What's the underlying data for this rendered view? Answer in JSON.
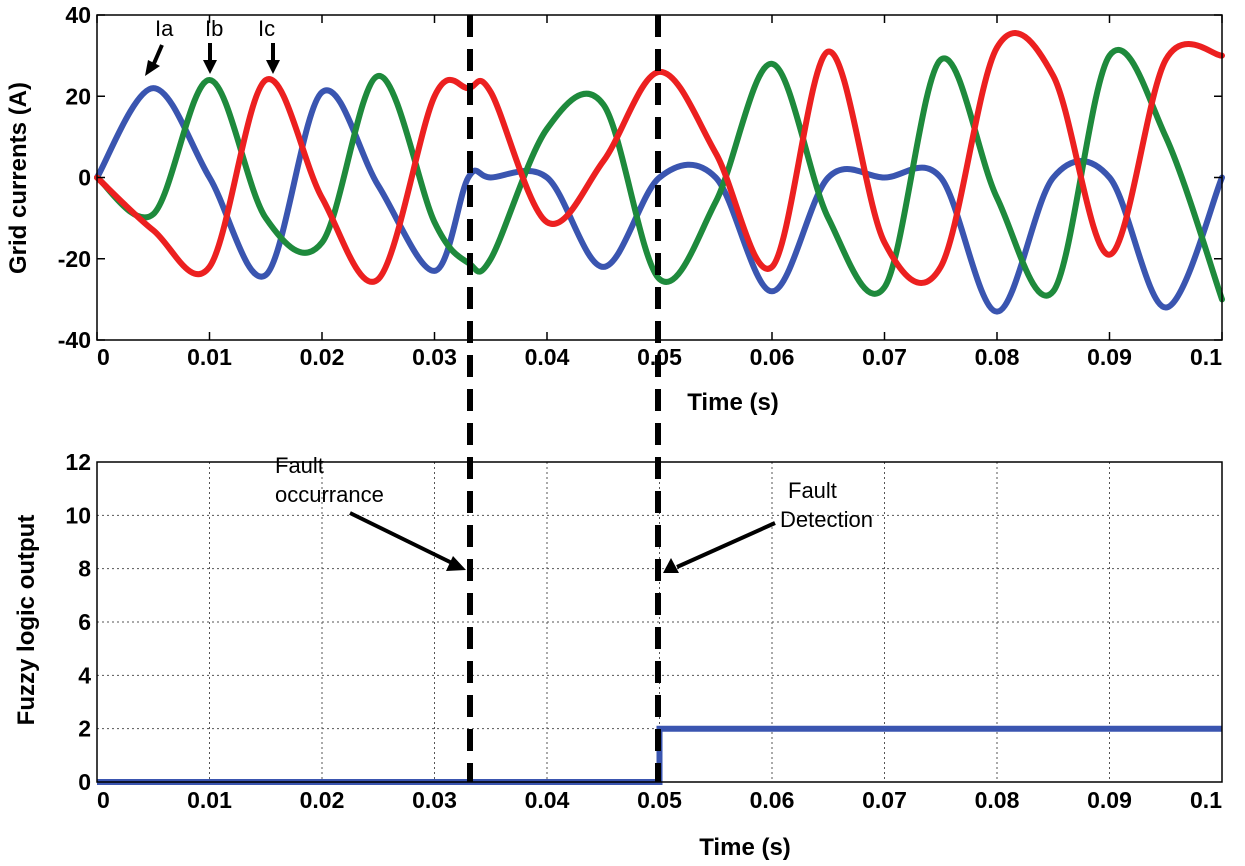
{
  "chart_data": [
    {
      "type": "line",
      "title": "",
      "xlabel": "Time (s)",
      "ylabel": "Grid currents (A)",
      "xlim": [
        0,
        0.1
      ],
      "ylim": [
        -40,
        40
      ],
      "xticks": [
        "0",
        "0.01",
        "0.02",
        "0.03",
        "0.04",
        "0.05",
        "0.06",
        "0.07",
        "0.08",
        "0.09",
        "0.1"
      ],
      "yticks": [
        "-40",
        "-20",
        "0",
        "20",
        "40"
      ],
      "grid": false,
      "x": [
        0,
        0.005,
        0.01,
        0.015,
        0.02,
        0.025,
        0.03,
        0.033,
        0.035,
        0.04,
        0.045,
        0.05,
        0.055,
        0.06,
        0.065,
        0.07,
        0.075,
        0.08,
        0.085,
        0.09,
        0.095,
        0.1
      ],
      "series": [
        {
          "name": "Ia",
          "color": "#3a55b0",
          "values": [
            0,
            22,
            0,
            -24,
            21,
            -2,
            -23,
            0,
            0,
            0,
            -22,
            0,
            0,
            -28,
            0,
            0,
            0,
            -33,
            0,
            0,
            -32,
            0
          ]
        },
        {
          "name": "Ib",
          "color": "#1e8a3c",
          "values": [
            0,
            -9,
            24,
            -10,
            -16,
            25,
            -11,
            -21,
            -20,
            12,
            18,
            -25,
            -6,
            28,
            -10,
            -27,
            29,
            -5,
            -28,
            30,
            10,
            -30
          ]
        },
        {
          "name": "Ic",
          "color": "#ec2020",
          "values": [
            0,
            -13,
            -22,
            24,
            -5,
            -25,
            20,
            22,
            21,
            -11,
            4,
            26,
            6,
            -22,
            31,
            -16,
            -22,
            32,
            25,
            -19,
            29,
            30
          ]
        }
      ],
      "labels": {
        "ia": "Ia",
        "ib": "Ib",
        "ic": "Ic"
      }
    },
    {
      "type": "line",
      "title": "",
      "xlabel": "Time (s)",
      "ylabel": "Fuzzy logic output",
      "xlim": [
        0,
        0.1
      ],
      "ylim": [
        0,
        12
      ],
      "xticks": [
        "0",
        "0.01",
        "0.02",
        "0.03",
        "0.04",
        "0.05",
        "0.06",
        "0.07",
        "0.08",
        "0.09",
        "0.1"
      ],
      "yticks": [
        "0",
        "2",
        "4",
        "6",
        "8",
        "10",
        "12"
      ],
      "grid": true,
      "series": [
        {
          "color": "#3a55b0",
          "x": [
            0,
            0.05,
            0.05,
            0.1
          ],
          "values": [
            0,
            0,
            2,
            2
          ]
        }
      ],
      "annotations": [
        {
          "text": [
            "Fault",
            "occurrance"
          ],
          "x": 0.033,
          "y": 8
        },
        {
          "text": [
            "Fault",
            "Detection"
          ],
          "x": 0.05,
          "y": 8
        }
      ]
    }
  ],
  "markers": {
    "fault_occurrence_time": 0.033,
    "fault_detection_time": 0.05
  }
}
